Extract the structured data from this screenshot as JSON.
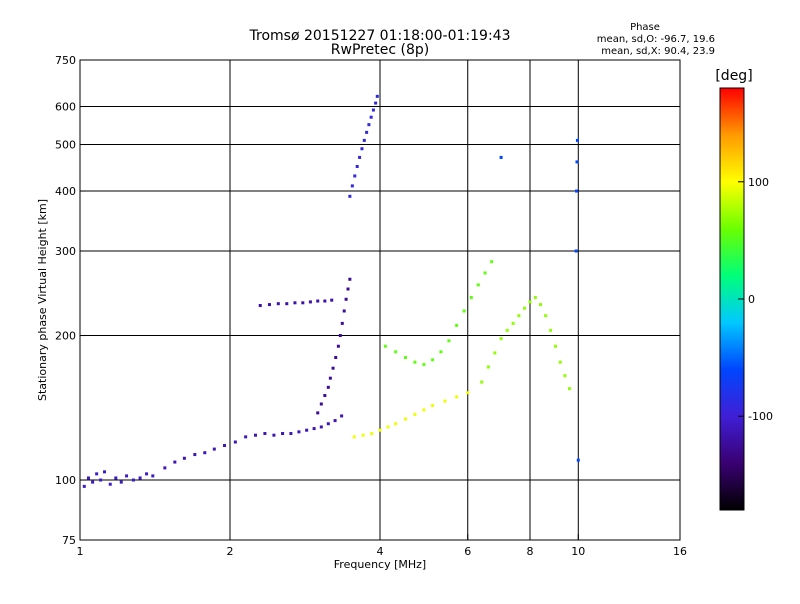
{
  "chart_data": {
    "type": "scatter",
    "title": "Tromsø 20151227 01:18:00-01:19:43",
    "subtitle": "RwPretec (8p)",
    "phase_stats": {
      "heading": "Phase",
      "line1": "mean, sd,O: -96.7, 19.6",
      "line2": "mean, sd,X:  90.4, 23.9"
    },
    "xlabel": "Frequency [MHz]",
    "ylabel": "Stationary phase Virtual Height [km]",
    "x_scale": "log",
    "y_scale": "log",
    "xlim": [
      1,
      16
    ],
    "ylim": [
      75,
      750
    ],
    "x_ticks": [
      1,
      2,
      4,
      6,
      8,
      10,
      16
    ],
    "x_tick_labels": [
      "1",
      "2",
      "4",
      "6",
      "8",
      "10",
      "16"
    ],
    "y_ticks": [
      75,
      100,
      200,
      300,
      400,
      500,
      600,
      750
    ],
    "y_tick_labels": [
      "75",
      "100",
      "200",
      "300",
      "400",
      "500",
      "600",
      "750"
    ],
    "x_gridlines": [
      2,
      4,
      6,
      8,
      10
    ],
    "y_gridlines": [
      100,
      200,
      300,
      400,
      500,
      600
    ],
    "grid": true,
    "colorbar": {
      "label": "[deg]",
      "range": [
        -180,
        180
      ],
      "tick_values": [
        100,
        0,
        -100
      ],
      "tick_labels": [
        "100",
        "0",
        "-100"
      ],
      "stops": [
        "#000000",
        "#3a0072",
        "#3f1fd6",
        "#0046ff",
        "#00c8ff",
        "#00ff7a",
        "#6bff00",
        "#ffff00",
        "#ff9a00",
        "#ff0000"
      ]
    },
    "series": [
      {
        "trace": "low-E trace",
        "phase": -105,
        "points": [
          [
            1.02,
            97
          ],
          [
            1.04,
            101
          ],
          [
            1.06,
            99
          ],
          [
            1.08,
            103
          ],
          [
            1.1,
            100
          ],
          [
            1.12,
            104
          ],
          [
            1.15,
            98
          ],
          [
            1.18,
            101
          ],
          [
            1.21,
            99
          ],
          [
            1.24,
            102
          ],
          [
            1.28,
            100
          ],
          [
            1.32,
            101
          ],
          [
            1.36,
            103
          ],
          [
            1.4,
            102
          ]
        ]
      },
      {
        "trace": "lower F trace",
        "phase": -112,
        "points": [
          [
            1.48,
            106
          ],
          [
            1.55,
            109
          ],
          [
            1.62,
            111
          ],
          [
            1.7,
            113
          ],
          [
            1.78,
            114
          ],
          [
            1.86,
            116
          ],
          [
            1.95,
            118
          ],
          [
            2.05,
            120
          ],
          [
            2.15,
            123
          ],
          [
            2.25,
            124
          ],
          [
            2.35,
            125
          ],
          [
            2.45,
            124
          ],
          [
            2.55,
            125
          ],
          [
            2.65,
            125
          ],
          [
            2.75,
            126
          ],
          [
            2.85,
            127
          ],
          [
            2.95,
            128
          ],
          [
            3.05,
            129
          ],
          [
            3.15,
            131
          ],
          [
            3.25,
            133
          ],
          [
            3.35,
            136
          ]
        ]
      },
      {
        "trace": "cusp near 3.2 MHz",
        "phase": -125,
        "points": [
          [
            3.0,
            138
          ],
          [
            3.05,
            144
          ],
          [
            3.1,
            150
          ],
          [
            3.15,
            156
          ],
          [
            3.18,
            163
          ],
          [
            3.22,
            171
          ],
          [
            3.26,
            180
          ],
          [
            3.3,
            190
          ],
          [
            3.33,
            200
          ],
          [
            3.36,
            212
          ],
          [
            3.39,
            225
          ],
          [
            3.42,
            238
          ],
          [
            3.45,
            250
          ],
          [
            3.48,
            262
          ]
        ]
      },
      {
        "trace": "upper plateau",
        "phase": -118,
        "points": [
          [
            2.3,
            231
          ],
          [
            2.4,
            232
          ],
          [
            2.5,
            233
          ],
          [
            2.6,
            233
          ],
          [
            2.7,
            234
          ],
          [
            2.8,
            234
          ],
          [
            2.9,
            235
          ],
          [
            3.0,
            236
          ],
          [
            3.1,
            236
          ],
          [
            3.2,
            237
          ]
        ]
      },
      {
        "trace": "high-altitude cluster",
        "phase": -92,
        "points": [
          [
            3.48,
            390
          ],
          [
            3.52,
            410
          ],
          [
            3.56,
            430
          ],
          [
            3.6,
            450
          ],
          [
            3.64,
            470
          ],
          [
            3.68,
            490
          ],
          [
            3.72,
            510
          ],
          [
            3.76,
            530
          ],
          [
            3.8,
            550
          ],
          [
            3.84,
            570
          ],
          [
            3.88,
            590
          ],
          [
            3.92,
            610
          ],
          [
            3.95,
            630
          ]
        ]
      },
      {
        "trace": "yellow band",
        "phase": 95,
        "points": [
          [
            3.55,
            123
          ],
          [
            3.7,
            124
          ],
          [
            3.85,
            125
          ],
          [
            4.0,
            127
          ],
          [
            4.15,
            129
          ],
          [
            4.3,
            131
          ],
          [
            4.5,
            134
          ],
          [
            4.7,
            137
          ],
          [
            4.9,
            140
          ],
          [
            5.1,
            143
          ],
          [
            5.4,
            146
          ],
          [
            5.7,
            149
          ],
          [
            6.0,
            152
          ]
        ]
      },
      {
        "trace": "mid-frequency region",
        "phase": 55,
        "points": [
          [
            4.1,
            190
          ],
          [
            4.3,
            185
          ],
          [
            4.5,
            180
          ],
          [
            4.7,
            176
          ],
          [
            4.9,
            174
          ],
          [
            5.1,
            178
          ],
          [
            5.3,
            185
          ],
          [
            5.5,
            195
          ],
          [
            5.7,
            210
          ],
          [
            5.9,
            225
          ],
          [
            6.1,
            240
          ],
          [
            6.3,
            255
          ],
          [
            6.5,
            270
          ],
          [
            6.7,
            285
          ]
        ]
      },
      {
        "trace": "high-frequency scatter",
        "phase": 70,
        "points": [
          [
            6.4,
            160
          ],
          [
            6.6,
            172
          ],
          [
            6.8,
            184
          ],
          [
            7.0,
            197
          ],
          [
            7.2,
            205
          ],
          [
            7.4,
            212
          ],
          [
            7.6,
            220
          ],
          [
            7.8,
            228
          ],
          [
            8.0,
            235
          ],
          [
            8.2,
            240
          ],
          [
            8.4,
            232
          ],
          [
            8.6,
            220
          ],
          [
            8.8,
            205
          ],
          [
            9.0,
            190
          ],
          [
            9.2,
            176
          ],
          [
            9.4,
            165
          ],
          [
            9.6,
            155
          ]
        ]
      },
      {
        "trace": "isolated points",
        "phase": -60,
        "points": [
          [
            9.9,
            300
          ],
          [
            9.92,
            400
          ],
          [
            9.94,
            460
          ],
          [
            9.96,
            510
          ],
          [
            10.0,
            110
          ],
          [
            7.0,
            470
          ]
        ]
      }
    ]
  }
}
